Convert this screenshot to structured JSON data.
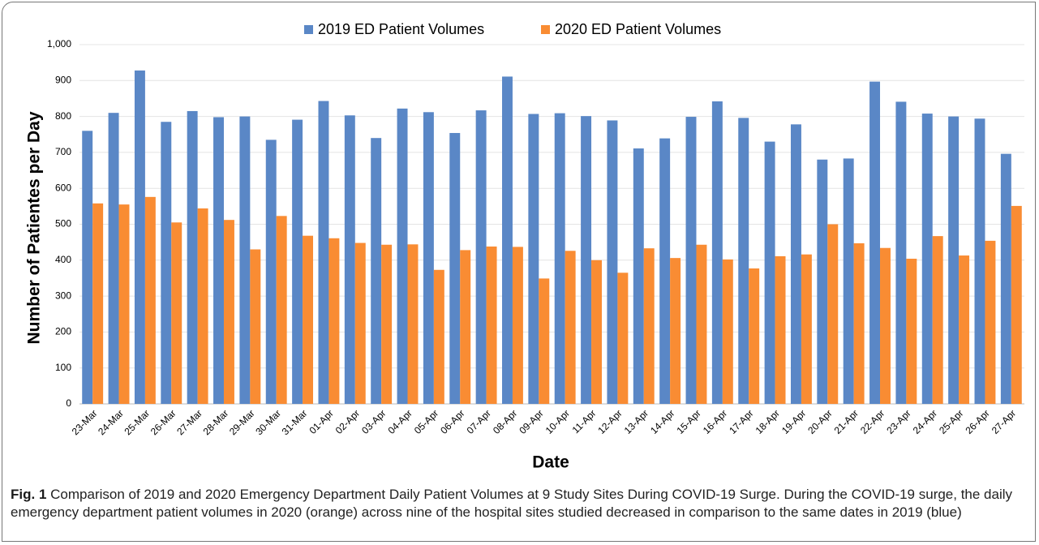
{
  "chart_data": {
    "type": "bar",
    "y_label": "Number of Patientes per Day",
    "x_label": "Date",
    "categories": [
      "23-Mar",
      "24-Mar",
      "25-Mar",
      "26-Mar",
      "27-Mar",
      "28-Mar",
      "29-Mar",
      "30-Mar",
      "31-Mar",
      "01-Apr",
      "02-Apr",
      "03-Apr",
      "04-Apr",
      "05-Apr",
      "06-Apr",
      "07-Apr",
      "08-Apr",
      "09-Apr",
      "10-Apr",
      "11-Apr",
      "12-Apr",
      "13-Apr",
      "14-Apr",
      "15-Apr",
      "16-Apr",
      "17-Apr",
      "18-Apr",
      "19-Apr",
      "20-Apr",
      "21-Apr",
      "22-Apr",
      "23-Apr",
      "24-Apr",
      "25-Apr",
      "26-Apr",
      "27-Apr"
    ],
    "series": [
      {
        "name": "2019 ED Patient Volumes",
        "color": "#5a87c6",
        "values": [
          760,
          810,
          928,
          785,
          815,
          798,
          800,
          735,
          791,
          843,
          803,
          740,
          822,
          812,
          754,
          817,
          911,
          807,
          809,
          801,
          789,
          711,
          739,
          799,
          842,
          796,
          730,
          778,
          680,
          683,
          897,
          841,
          808,
          800,
          794,
          696
        ]
      },
      {
        "name": "2020 ED Patient Volumes",
        "color": "#f98c33",
        "values": [
          558,
          555,
          576,
          505,
          544,
          512,
          430,
          523,
          468,
          461,
          448,
          443,
          444,
          373,
          428,
          438,
          437,
          349,
          426,
          400,
          365,
          433,
          406,
          443,
          402,
          377,
          411,
          416,
          500,
          447,
          434,
          404,
          467,
          413,
          454,
          551
        ]
      }
    ],
    "ylim": [
      0,
      1000
    ],
    "yticks": [
      0,
      100,
      200,
      300,
      400,
      500,
      600,
      700,
      800,
      900,
      {
        "value": 1000,
        "label": "1,000"
      }
    ],
    "grid": true,
    "legend": "top",
    "caption_label": "Fig. 1",
    "caption_text": "Comparison of 2019 and 2020 Emergency Department Daily Patient Volumes at 9 Study Sites During COVID-19 Surge. During the COVID-19 surge, the daily emergency department patient volumes in 2020 (orange) across nine of the hospital sites studied decreased in comparison to the same dates in 2019 (blue)"
  }
}
